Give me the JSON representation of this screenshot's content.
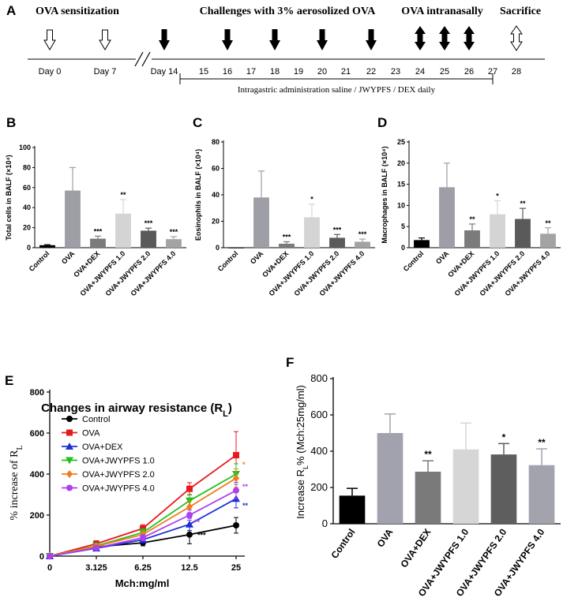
{
  "panel_labels": {
    "a": "A",
    "b": "B",
    "c": "C",
    "d": "D",
    "e": "E",
    "f": "F"
  },
  "timeline": {
    "head_sensitization": "OVA sensitization",
    "head_challenges": "Challenges with 3% aerosolized OVA",
    "head_intranasal": "OVA intranasally",
    "head_sacrifice": "Sacrifice",
    "days": [
      {
        "label": "Day 0",
        "kind": "sens"
      },
      {
        "label": "Day 7",
        "kind": "sens"
      },
      {
        "label": "Day 14",
        "kind": "chal"
      },
      {
        "label": "15",
        "kind": ""
      },
      {
        "label": "16",
        "kind": "chal"
      },
      {
        "label": "17",
        "kind": ""
      },
      {
        "label": "18",
        "kind": "chal"
      },
      {
        "label": "19",
        "kind": ""
      },
      {
        "label": "20",
        "kind": "chal"
      },
      {
        "label": "21",
        "kind": ""
      },
      {
        "label": "22",
        "kind": "chal"
      },
      {
        "label": "23",
        "kind": ""
      },
      {
        "label": "24",
        "kind": "intra"
      },
      {
        "label": "25",
        "kind": "intra"
      },
      {
        "label": "26",
        "kind": "intra"
      },
      {
        "label": "27",
        "kind": ""
      },
      {
        "label": "28",
        "kind": "sac"
      }
    ],
    "treatment": "Intragastric administration saline / JWYPFS / DEX daily"
  },
  "chart_data": [
    {
      "id": "B",
      "type": "bar",
      "ylabel": "Total cells in BALF (×10⁴)",
      "ylim": [
        0,
        100
      ],
      "yticks": [
        0,
        20,
        40,
        60,
        80,
        100
      ],
      "categories": [
        "Control",
        "OVA",
        "OVA+DEX",
        "OVA+JWYPFS 1.0",
        "OVA+JWYPFS 2.0",
        "OVA+JWYPFS 4.0"
      ],
      "values": [
        2.5,
        57,
        9,
        34,
        17,
        8.5
      ],
      "errors": [
        0.5,
        23,
        2.5,
        14,
        2.5,
        2.5
      ],
      "significance": [
        "",
        "",
        "***",
        "**",
        "***",
        "***"
      ],
      "colors": [
        "#000000",
        "#9e9ea6",
        "#7b7b7b",
        "#d4d4d4",
        "#5a5a5a",
        "#a3a3a3"
      ]
    },
    {
      "id": "C",
      "type": "bar",
      "ylabel": "Eosinophils in BALF (×10⁴)",
      "ylim": [
        0,
        80
      ],
      "yticks": [
        0,
        20,
        40,
        60,
        80
      ],
      "categories": [
        "Control",
        "OVA",
        "OVA+DEX",
        "OVA+JWYPFS 1.0",
        "OVA+JWYPFS 2.0",
        "OVA+JWYPFS 4.0"
      ],
      "values": [
        0,
        38,
        3,
        23,
        7.5,
        4.5
      ],
      "errors": [
        0,
        20,
        1.5,
        10,
        2.5,
        2.0
      ],
      "significance": [
        "",
        "",
        "***",
        "*",
        "***",
        "***"
      ],
      "colors": [
        "#000000",
        "#9e9ea6",
        "#7b7b7b",
        "#d4d4d4",
        "#5a5a5a",
        "#a3a3a3"
      ]
    },
    {
      "id": "D",
      "type": "bar",
      "ylabel": "Macrophages in BALF (×10⁴)",
      "ylim": [
        0,
        25
      ],
      "yticks": [
        0,
        5,
        10,
        15,
        20,
        25
      ],
      "categories": [
        "Control",
        "OVA",
        "OVA+DEX",
        "OVA+JWYPFS 1.0",
        "OVA+JWYPFS 2.0",
        "OVA+JWYPFS 4.0"
      ],
      "values": [
        1.8,
        14.3,
        4.1,
        7.9,
        6.8,
        3.3
      ],
      "errors": [
        0.5,
        5.7,
        1.5,
        3.2,
        2.5,
        1.4
      ],
      "significance": [
        "",
        "",
        "**",
        "*",
        "**",
        "**"
      ],
      "colors": [
        "#000000",
        "#9e9ea6",
        "#7b7b7b",
        "#d4d4d4",
        "#5a5a5a",
        "#a3a3a3"
      ]
    },
    {
      "id": "E",
      "type": "line",
      "title": "Changes in airway resistance (R",
      "title_sub": "L",
      "title_end": ")",
      "ylabel": "% increase of R",
      "ylabel_sub": "L",
      "xlabel": "Mch:mg/ml",
      "ylim": [
        0,
        800
      ],
      "yticks": [
        0,
        200,
        400,
        600,
        800
      ],
      "x": [
        "0",
        "3.125",
        "6.25",
        "12.5",
        "25"
      ],
      "series": [
        {
          "name": "Control",
          "color": "#000000",
          "marker": "circle",
          "values": [
            0,
            45,
            65,
            105,
            150
          ],
          "errors": [
            0,
            12,
            15,
            45,
            38
          ],
          "sig": [
            "",
            "",
            "",
            "***",
            ""
          ]
        },
        {
          "name": "OVA",
          "color": "#e8191c",
          "marker": "square",
          "values": [
            0,
            60,
            135,
            328,
            492
          ],
          "errors": [
            0,
            15,
            18,
            30,
            115
          ],
          "sig": [
            "",
            "",
            "",
            "",
            ""
          ]
        },
        {
          "name": "OVA+DEX",
          "color": "#1f2fd6",
          "marker": "triangle",
          "values": [
            0,
            38,
            80,
            155,
            280
          ],
          "errors": [
            0,
            10,
            15,
            30,
            45
          ],
          "sig": [
            "",
            "",
            "",
            "",
            "**"
          ]
        },
        {
          "name": "OVA+JWYPFS 1.0",
          "color": "#22c11e",
          "marker": "triangle-down",
          "values": [
            0,
            50,
            115,
            270,
            400
          ],
          "errors": [
            0,
            10,
            18,
            30,
            50
          ],
          "sig": [
            "",
            "",
            "",
            "",
            ""
          ]
        },
        {
          "name": "OVA+JWYPFS 2.0",
          "color": "#f07d1a",
          "marker": "diamond",
          "values": [
            0,
            48,
            105,
            240,
            380
          ],
          "errors": [
            0,
            10,
            15,
            30,
            45
          ],
          "sig": [
            "",
            "",
            "",
            "",
            "*"
          ]
        },
        {
          "name": "OVA+JWYPFS 4.0",
          "color": "#b03ef0",
          "marker": "circle",
          "values": [
            0,
            40,
            90,
            200,
            320
          ],
          "errors": [
            0,
            10,
            15,
            25,
            40
          ],
          "sig": [
            "",
            "",
            "",
            "**",
            "**"
          ]
        }
      ]
    },
    {
      "id": "F",
      "type": "bar",
      "ylabel": "Increase R",
      "ylabel_sub": "L",
      "ylabel_end": "% (Mch:25mg/ml)",
      "ylim": [
        0,
        800
      ],
      "yticks": [
        0,
        200,
        400,
        600,
        800
      ],
      "categories": [
        "Control",
        "OVA",
        "OVA+DEX",
        "OVA+JWYPFS 1.0",
        "OVA+JWYPFS 2.0",
        "OVA+JWYPFS 4.0"
      ],
      "values": [
        155,
        500,
        287,
        410,
        382,
        323
      ],
      "errors": [
        40,
        105,
        60,
        145,
        60,
        90
      ],
      "significance": [
        "",
        "",
        "**",
        "",
        "*",
        "**"
      ],
      "colors": [
        "#000000",
        "#a2a2ae",
        "#7a7a7a",
        "#d6d6d6",
        "#5e5e5e",
        "#a3a3ad"
      ]
    }
  ]
}
